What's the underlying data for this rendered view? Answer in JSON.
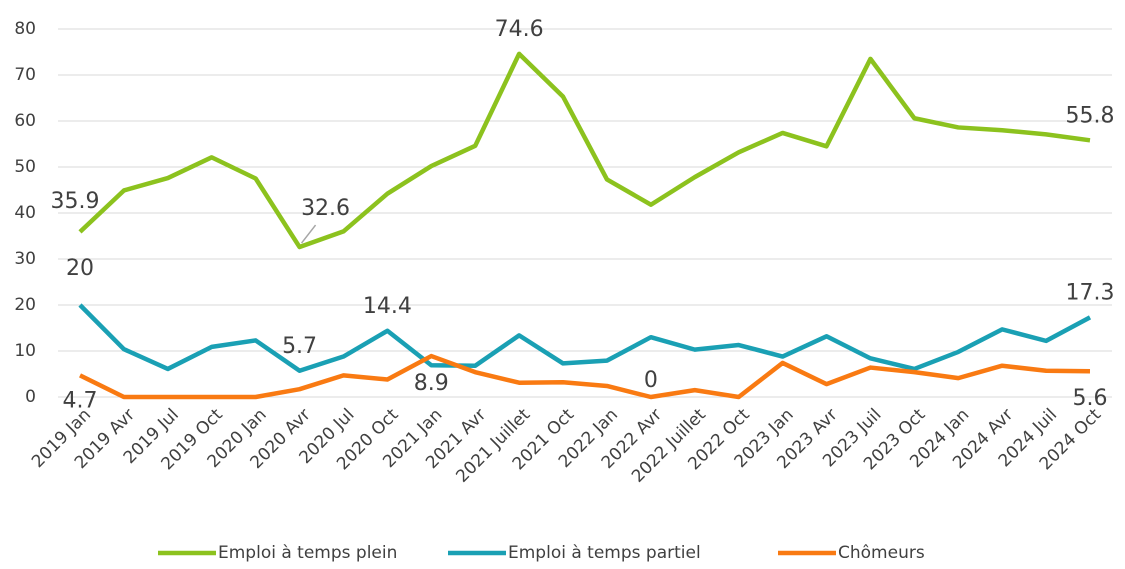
{
  "chart_data": {
    "type": "line",
    "categories": [
      "2019 Jan",
      "2019 Avr",
      "2019 Jul",
      "2019 Oct",
      "2020 Jan",
      "2020 Avr",
      "2020 Jul",
      "2020 Oct",
      "2021 Jan",
      "2021 Avr",
      "2021 Juillet",
      "2021 Oct",
      "2022 Jan",
      "2022 Avr",
      "2022 Juillet",
      "2022 Oct",
      "2023 Jan",
      "2023 Avr",
      "2023 Juil",
      "2023 Oct",
      "2024 Jan",
      "2024 Avr",
      "2024 Juil",
      "2024 Oct"
    ],
    "series": [
      {
        "name": "Emploi à temps plein",
        "color": "#8cc21e",
        "values": [
          35.9,
          44.9,
          47.6,
          52.1,
          47.5,
          32.6,
          36,
          44.2,
          50.2,
          54.6,
          74.6,
          65.3,
          47.3,
          41.8,
          47.8,
          53.2,
          57.4,
          54.5,
          73.5,
          60.6,
          58.6,
          58,
          57.1,
          55.8
        ],
        "value_labels": [
          "35.9",
          null,
          null,
          null,
          null,
          "32.6",
          null,
          null,
          null,
          null,
          "74.6",
          null,
          null,
          null,
          null,
          null,
          null,
          null,
          null,
          null,
          null,
          null,
          null,
          "55.8"
        ]
      },
      {
        "name": "Emploi à temps partiel",
        "color": "#1aa0b4",
        "values": [
          20,
          10.4,
          6.1,
          10.9,
          12.3,
          5.7,
          8.8,
          14.4,
          6.9,
          6.8,
          13.4,
          7.3,
          7.9,
          13,
          10.3,
          11.3,
          8.8,
          13.2,
          8.4,
          6.1,
          9.8,
          14.7,
          12.2,
          17.3
        ],
        "value_labels": [
          "20",
          null,
          null,
          null,
          null,
          "5.7",
          null,
          "14.4",
          null,
          null,
          null,
          null,
          null,
          null,
          null,
          null,
          null,
          null,
          null,
          null,
          null,
          null,
          null,
          "17.3"
        ]
      },
      {
        "name": "Chômeurs",
        "color": "#f97a12",
        "values": [
          4.7,
          0,
          0,
          0,
          0,
          1.7,
          4.7,
          3.8,
          8.9,
          5.4,
          3.1,
          3.2,
          2.4,
          0,
          1.5,
          0,
          7.4,
          2.8,
          6.4,
          5.4,
          4.1,
          6.8,
          5.7,
          5.6
        ],
        "value_labels": [
          "4.7",
          null,
          null,
          null,
          null,
          null,
          null,
          null,
          "8.9",
          null,
          null,
          null,
          null,
          "0",
          null,
          null,
          null,
          null,
          null,
          null,
          null,
          null,
          null,
          "5.6"
        ]
      }
    ],
    "ylim": [
      0,
      80
    ],
    "yticks": [
      0,
      10,
      20,
      30,
      40,
      50,
      60,
      70,
      80
    ],
    "grid": true,
    "legend": "bottom"
  }
}
